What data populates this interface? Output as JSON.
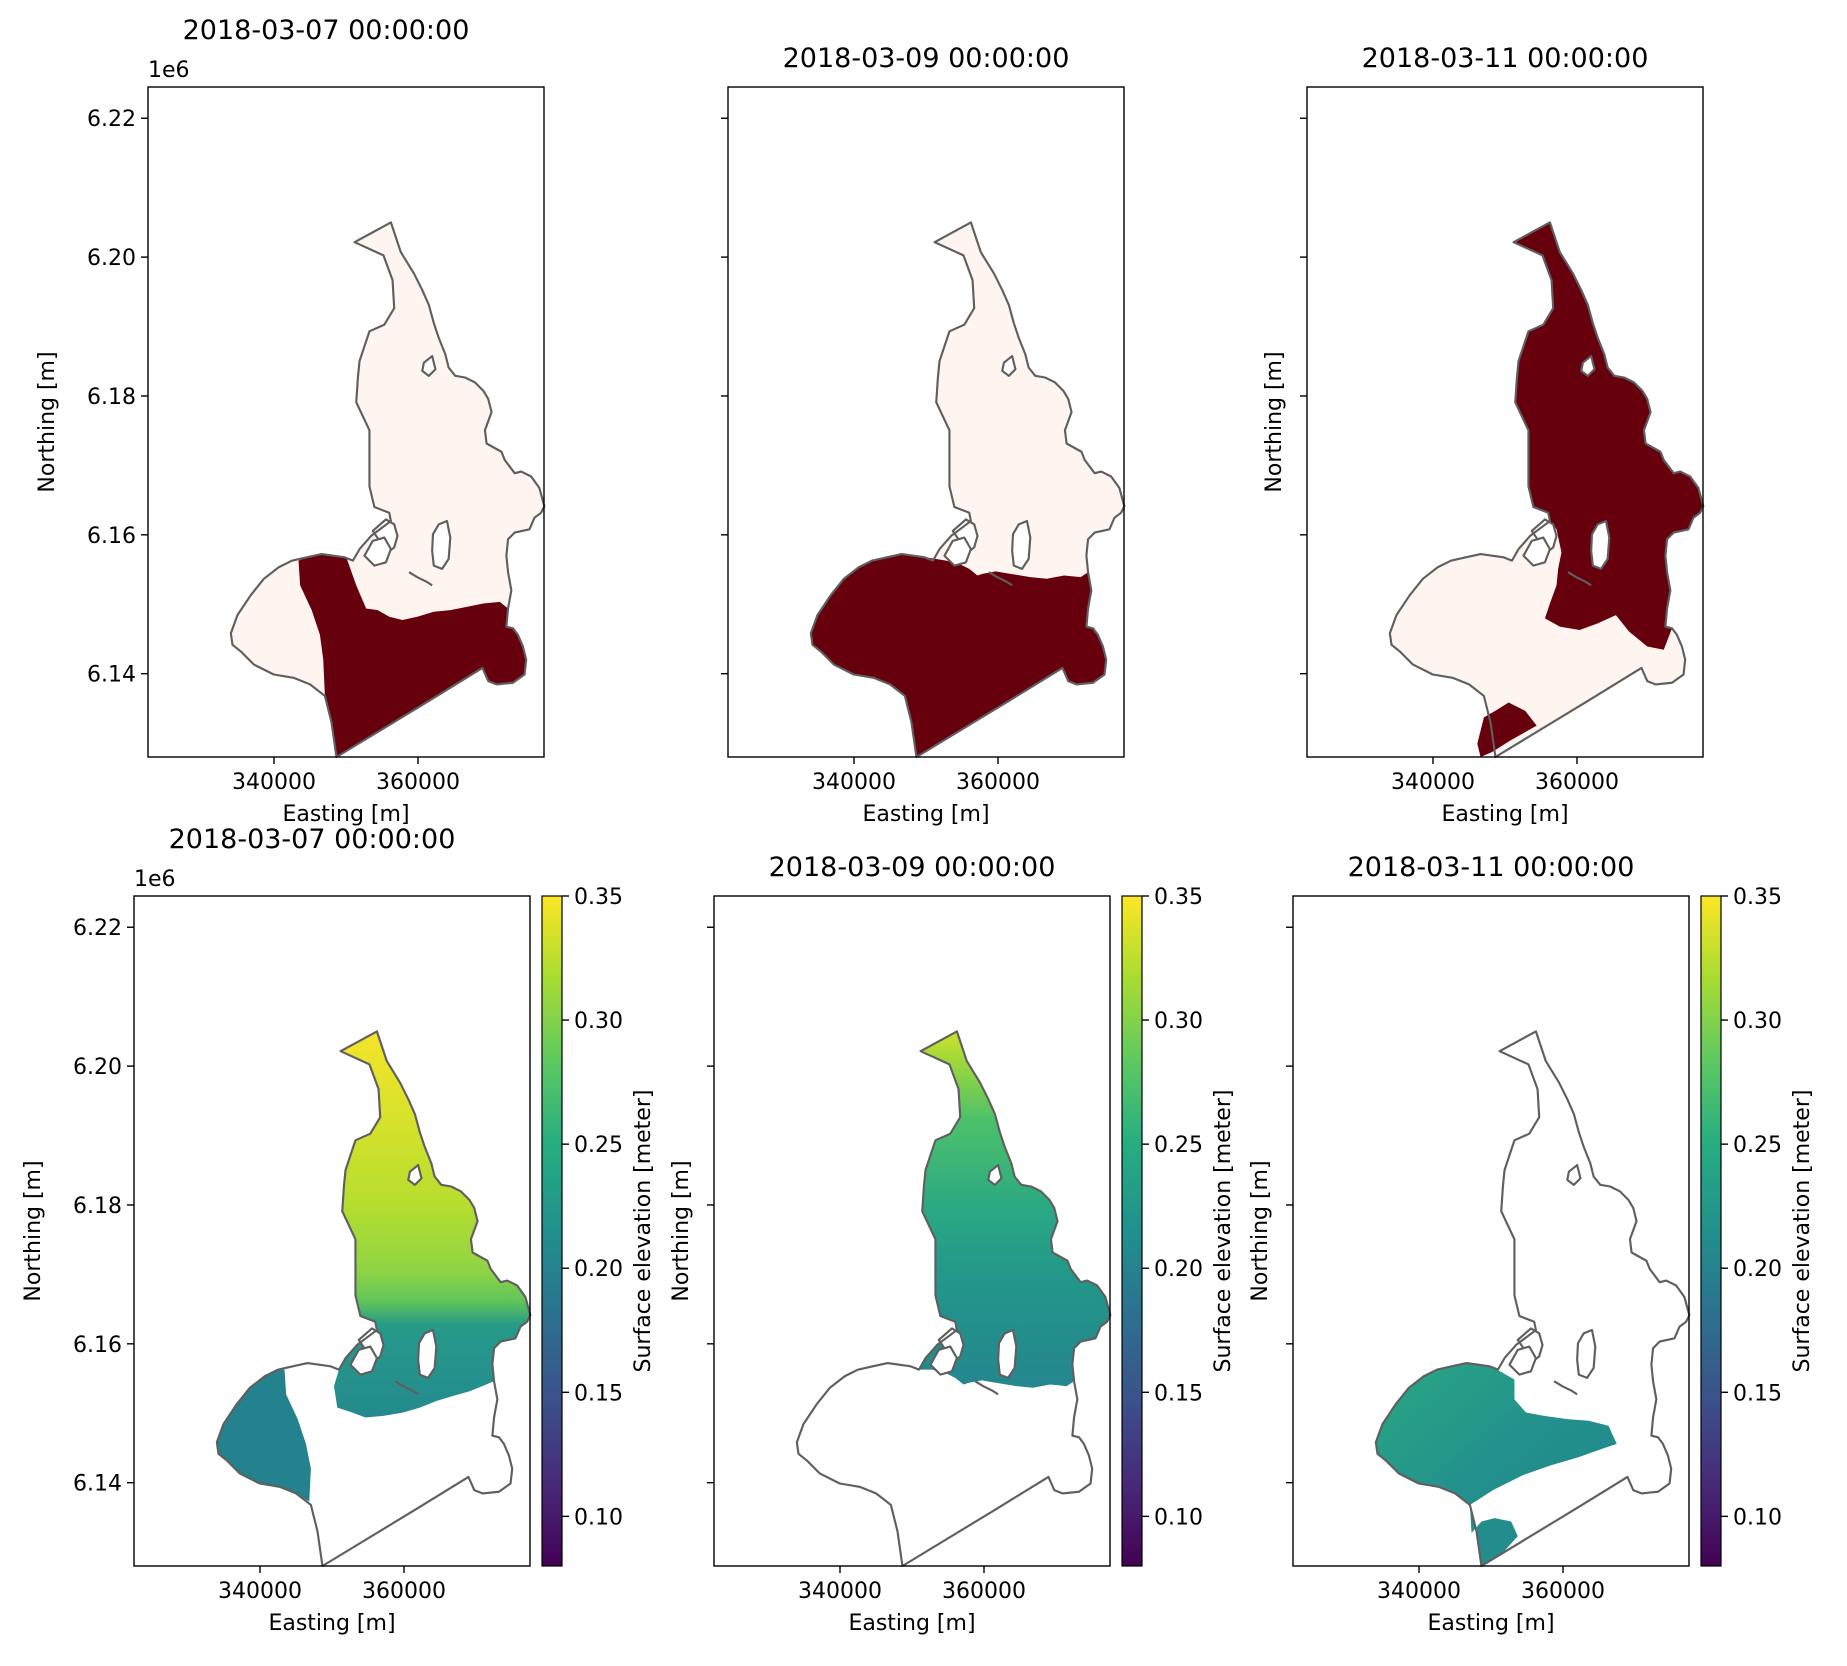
{
  "figure": {
    "offset_label": "1e6",
    "xlabel": "Easting [m]",
    "ylabel": "Northing [m]",
    "x_ticks": [
      340000,
      360000
    ],
    "y_ticks": [
      6.14,
      6.16,
      6.18,
      6.2,
      6.22
    ],
    "y_tick_labels": [
      "6.14",
      "6.16",
      "6.18",
      "6.20",
      "6.22"
    ],
    "colorbar": {
      "label": "Surface elevation [meter]",
      "range": [
        0.08,
        0.35
      ],
      "ticks": [
        0.1,
        0.15,
        0.2,
        0.25,
        0.3,
        0.35
      ],
      "tick_labels": [
        "0.10",
        "0.15",
        "0.20",
        "0.25",
        "0.30",
        "0.35"
      ],
      "colormap": "viridis"
    },
    "mask_colors": {
      "wet": "#67000d",
      "dry": "#fff5f0"
    },
    "outline_color": "#5f5f5f"
  },
  "chart_data": [
    {
      "type": "heatmap",
      "panel": "mask",
      "title": "2018-03-07 00:00:00",
      "xlabel": "Easting [m]",
      "ylabel": "Northing [m]",
      "xlim": [
        322500,
        377500
      ],
      "ylim": [
        6128000,
        6224500
      ],
      "wet_region": "southern and central basin"
    },
    {
      "type": "heatmap",
      "panel": "mask",
      "title": "2018-03-09 00:00:00",
      "xlabel": "Easting [m]",
      "ylabel": "",
      "xlim": [
        322500,
        377500
      ],
      "ylim": [
        6128000,
        6224500
      ],
      "wet_region": "southern basin"
    },
    {
      "type": "heatmap",
      "panel": "mask",
      "title": "2018-03-11 00:00:00",
      "xlabel": "Easting [m]",
      "ylabel": "Northing [m]",
      "xlim": [
        322500,
        377500
      ],
      "ylim": [
        6128000,
        6224500
      ],
      "wet_region": "northern arm and southern pocket"
    },
    {
      "type": "heatmap",
      "panel": "elevation",
      "title": "2018-03-07 00:00:00",
      "xlabel": "Easting [m]",
      "ylabel": "Northing [m]",
      "xlim": [
        322500,
        377500
      ],
      "ylim": [
        6128000,
        6224500
      ],
      "value_range": [
        0.19,
        0.34
      ]
    },
    {
      "type": "heatmap",
      "panel": "elevation",
      "title": "2018-03-09 00:00:00",
      "xlabel": "Easting [m]",
      "ylabel": "Northing [m]",
      "xlim": [
        322500,
        377500
      ],
      "ylim": [
        6128000,
        6224500
      ],
      "value_range": [
        0.21,
        0.32
      ]
    },
    {
      "type": "heatmap",
      "panel": "elevation",
      "title": "2018-03-11 00:00:00",
      "xlabel": "Easting [m]",
      "ylabel": "Northing [m]",
      "xlim": [
        322500,
        377500
      ],
      "ylim": [
        6128000,
        6224500
      ],
      "value_range": [
        0.22,
        0.26
      ]
    }
  ]
}
